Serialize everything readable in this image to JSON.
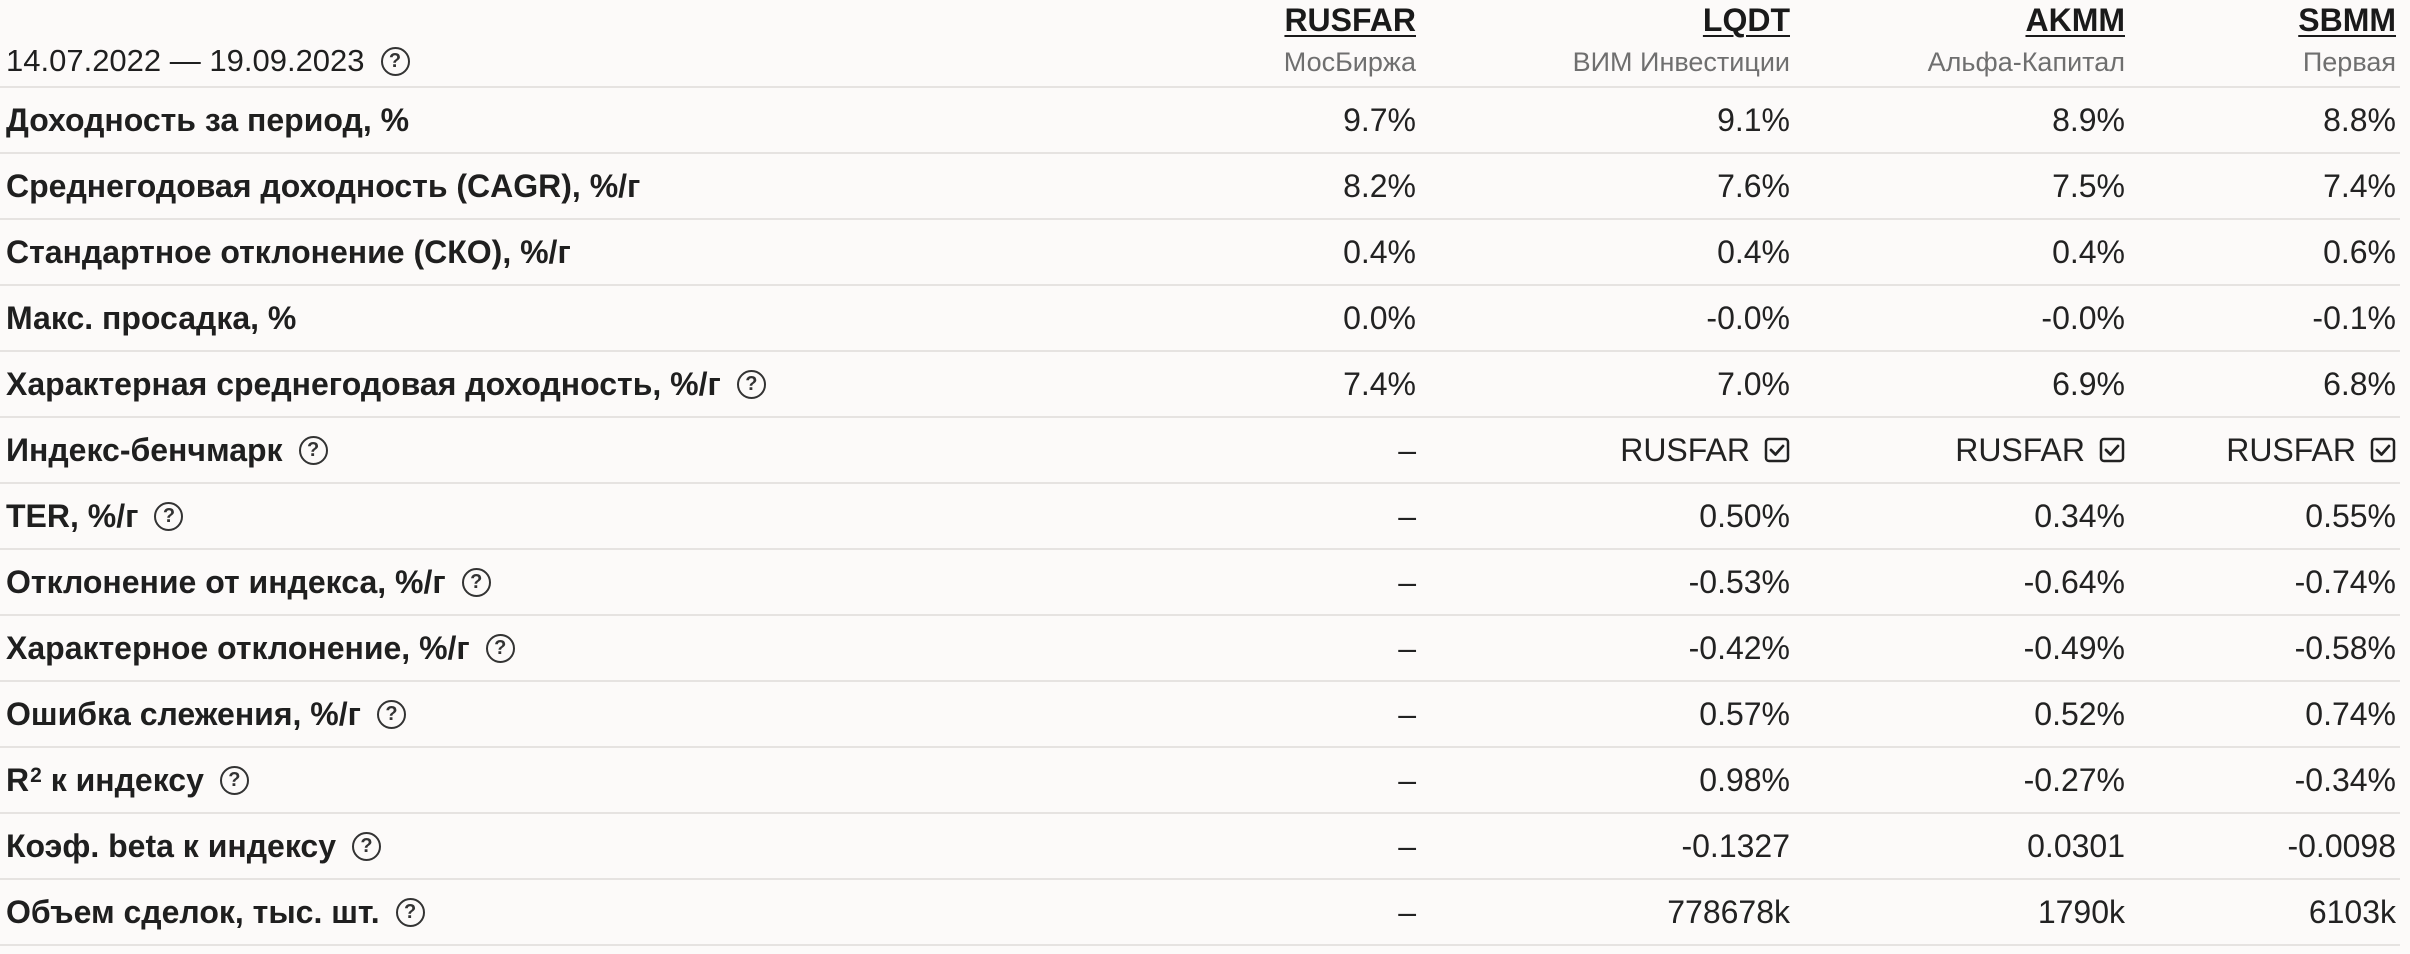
{
  "period": "14.07.2022 — 19.09.2023",
  "columns": [
    {
      "ticker": "RUSFAR",
      "provider": "МосБиржа"
    },
    {
      "ticker": "LQDT",
      "provider": "ВИМ Инвестиции"
    },
    {
      "ticker": "AKMM",
      "provider": "Альфа-Капитал"
    },
    {
      "ticker": "SBMM",
      "provider": "Первая"
    }
  ],
  "rows": [
    {
      "label": "Доходность за период, %",
      "values": [
        "9.7%",
        "9.1%",
        "8.9%",
        "8.8%"
      ]
    },
    {
      "label": "Среднегодовая доходность (CAGR), %/г",
      "values": [
        "8.2%",
        "7.6%",
        "7.5%",
        "7.4%"
      ]
    },
    {
      "label": "Стандартное отклонение (СКО), %/г",
      "values": [
        "0.4%",
        "0.4%",
        "0.4%",
        "0.6%"
      ]
    },
    {
      "label": "Макс. просадка, %",
      "values": [
        "0.0%",
        "-0.0%",
        "-0.0%",
        "-0.1%"
      ]
    },
    {
      "label": "Характерная среднегодовая доходность, %/г",
      "values": [
        "7.4%",
        "7.0%",
        "6.9%",
        "6.8%"
      ]
    },
    {
      "label": "Индекс-бенчмарк",
      "values": [
        "–",
        "RUSFAR",
        "RUSFAR",
        "RUSFAR"
      ]
    },
    {
      "label": "TER, %/г",
      "values": [
        "–",
        "0.50%",
        "0.34%",
        "0.55%"
      ]
    },
    {
      "label": "Отклонение от индекса, %/г",
      "values": [
        "–",
        "-0.53%",
        "-0.64%",
        "-0.74%"
      ]
    },
    {
      "label": "Характерное отклонение, %/г",
      "values": [
        "–",
        "-0.42%",
        "-0.49%",
        "-0.58%"
      ]
    },
    {
      "label": "Ошибка слежения, %/г",
      "values": [
        "–",
        "0.57%",
        "0.52%",
        "0.74%"
      ]
    },
    {
      "label": "R",
      "label_sup": "2",
      "label_rest": " к индексу",
      "values": [
        "–",
        "0.98%",
        "-0.27%",
        "-0.34%"
      ]
    },
    {
      "label": "Коэф. beta к индексу",
      "values": [
        "–",
        "-0.1327",
        "0.0301",
        "-0.0098"
      ]
    },
    {
      "label": "Объем сделок, тыс. шт.",
      "values": [
        "–",
        "778678k",
        "1790k",
        "6103k"
      ]
    }
  ],
  "icons": {
    "help": "question-circle-icon",
    "check": "checkbox-checked-icon"
  },
  "help_glyph": "?"
}
